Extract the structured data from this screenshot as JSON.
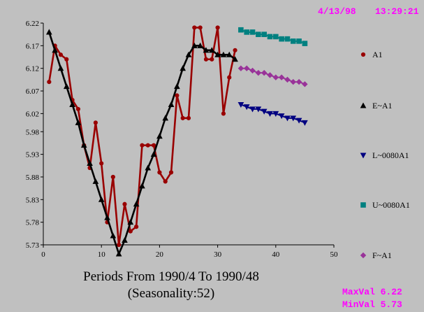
{
  "header": {
    "date": "4/13/98",
    "time": "13:29:21"
  },
  "footer": {
    "caption_line1": "Periods From 1990/4 To 1990/48",
    "caption_line2": "(Seasonality:52)",
    "max_val": "MaxVal 6.22",
    "min_val": "MinVal 5.73"
  },
  "chart_data": {
    "type": "line",
    "title": "",
    "xlabel": "",
    "ylabel": "",
    "xlim": [
      0,
      50
    ],
    "ylim": [
      5.73,
      6.22
    ],
    "x_ticks": [
      0,
      10,
      20,
      30,
      40,
      50
    ],
    "y_ticks": [
      "5.73",
      "5.78",
      "5.83",
      "5.88",
      "5.93",
      "5.98",
      "6.02",
      "6.07",
      "6.12",
      "6.17",
      "6.22"
    ],
    "grid": false,
    "legend_position": "right",
    "series": [
      {
        "name": "A1",
        "color": "#990000",
        "marker": "circle",
        "line": true,
        "x": [
          1,
          2,
          3,
          4,
          5,
          6,
          7,
          8,
          9,
          10,
          11,
          12,
          13,
          14,
          15,
          16,
          17,
          18,
          19,
          20,
          21,
          22,
          23,
          24,
          25,
          26,
          27,
          28,
          29,
          30,
          31,
          32,
          33
        ],
        "y": [
          6.09,
          6.17,
          6.15,
          6.14,
          6.05,
          6.03,
          5.95,
          5.9,
          6.0,
          5.91,
          5.78,
          5.88,
          5.73,
          5.82,
          5.76,
          5.77,
          5.95,
          5.95,
          5.95,
          5.89,
          5.87,
          5.89,
          6.06,
          6.01,
          6.01,
          6.21,
          6.21,
          6.14,
          6.14,
          6.21,
          6.02,
          6.1,
          6.16
        ]
      },
      {
        "name": "E~A1",
        "color": "#000000",
        "marker": "triangle",
        "line": true,
        "x": [
          1,
          2,
          3,
          4,
          5,
          6,
          7,
          8,
          9,
          10,
          11,
          12,
          13,
          14,
          15,
          16,
          17,
          18,
          19,
          20,
          21,
          22,
          23,
          24,
          25,
          26,
          27,
          28,
          29,
          30,
          31,
          32,
          33
        ],
        "y": [
          6.2,
          6.16,
          6.12,
          6.08,
          6.04,
          6.0,
          5.95,
          5.91,
          5.87,
          5.83,
          5.79,
          5.75,
          5.71,
          5.74,
          5.78,
          5.82,
          5.86,
          5.9,
          5.93,
          5.97,
          6.01,
          6.04,
          6.08,
          6.12,
          6.15,
          6.17,
          6.17,
          6.16,
          6.16,
          6.15,
          6.15,
          6.15,
          6.14
        ]
      },
      {
        "name": "L~0080A1",
        "color": "#000080",
        "marker": "triangle-down",
        "line": true,
        "x": [
          34,
          35,
          36,
          37,
          38,
          39,
          40,
          41,
          42,
          43,
          44,
          45
        ],
        "y": [
          6.04,
          6.035,
          6.03,
          6.03,
          6.025,
          6.02,
          6.02,
          6.015,
          6.01,
          6.01,
          6.005,
          6.0
        ]
      },
      {
        "name": "U~0080A1",
        "color": "#008080",
        "marker": "square",
        "line": true,
        "x": [
          34,
          35,
          36,
          37,
          38,
          39,
          40,
          41,
          42,
          43,
          44,
          45
        ],
        "y": [
          6.205,
          6.2,
          6.2,
          6.195,
          6.195,
          6.19,
          6.19,
          6.185,
          6.185,
          6.18,
          6.18,
          6.175
        ]
      },
      {
        "name": "F~A1",
        "color": "#993399",
        "marker": "diamond",
        "line": true,
        "x": [
          34,
          35,
          36,
          37,
          38,
          39,
          40,
          41,
          42,
          43,
          44,
          45
        ],
        "y": [
          6.12,
          6.12,
          6.115,
          6.11,
          6.11,
          6.105,
          6.1,
          6.1,
          6.095,
          6.09,
          6.09,
          6.085
        ]
      }
    ]
  }
}
